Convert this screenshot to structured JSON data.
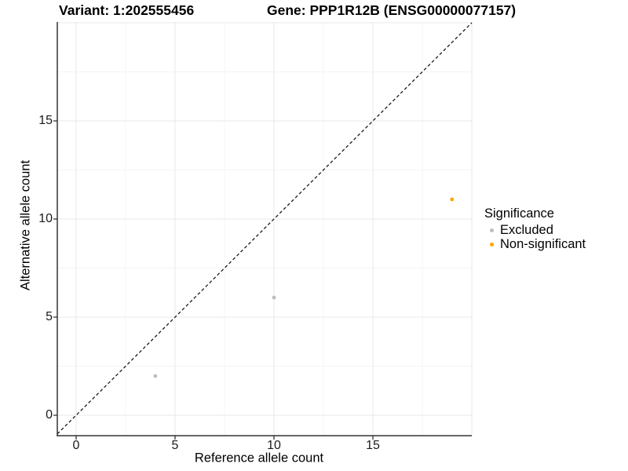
{
  "titles": {
    "variant": "Variant: 1:202555456",
    "gene": "Gene: PPP1R12B (ENSG00000077157)"
  },
  "axes": {
    "x_label": "Reference allele count",
    "y_label": "Alternative allele count"
  },
  "legend": {
    "title": "Significance",
    "items": [
      {
        "label": "Excluded",
        "color": "#BEBEBE"
      },
      {
        "label": "Non-significant",
        "color": "#FFA500"
      }
    ]
  },
  "chart_data": {
    "type": "scatter",
    "title": "Variant: 1:202555456 | Gene: PPP1R12B (ENSG00000077157)",
    "xlabel": "Reference allele count",
    "ylabel": "Alternative allele count",
    "xlim": [
      -1,
      20
    ],
    "ylim": [
      -1,
      20
    ],
    "x_ticks": [
      0,
      5,
      10,
      15
    ],
    "y_ticks": [
      0,
      5,
      10,
      15
    ],
    "x_major_gridlines": [
      0,
      5,
      10,
      15,
      20
    ],
    "y_major_gridlines": [
      0,
      5,
      10,
      15,
      20
    ],
    "x_minor_gridlines": [
      2.5,
      7.5,
      12.5,
      17.5
    ],
    "y_minor_gridlines": [
      2.5,
      7.5,
      12.5,
      17.5
    ],
    "grid": true,
    "legend_position": "right",
    "legend_title": "Significance",
    "series": [
      {
        "name": "Excluded",
        "color": "#BEBEBE",
        "points": [
          {
            "x": 4,
            "y": 2
          },
          {
            "x": 10,
            "y": 6
          }
        ]
      },
      {
        "name": "Non-significant",
        "color": "#FFA500",
        "points": [
          {
            "x": 19,
            "y": 11
          }
        ]
      }
    ],
    "reference_line": {
      "description": "y = x identity line",
      "style": "dashed",
      "color": "#1a1a1a"
    }
  },
  "style_colors": {
    "background": "#FFFFFF",
    "major_gridline": "#E8E8E8",
    "minor_gridline": "#F4F4F4",
    "axis_line": "#333333"
  }
}
